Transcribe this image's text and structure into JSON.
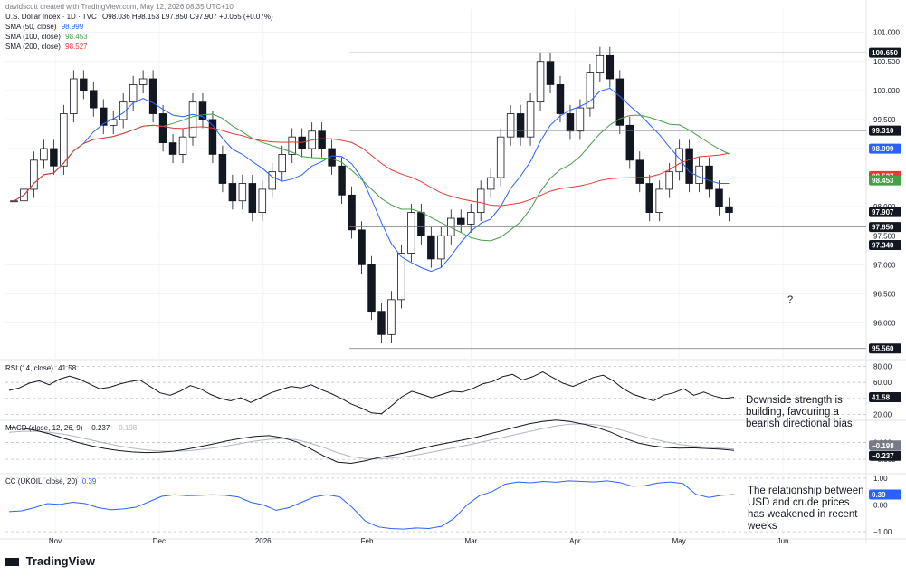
{
  "header": {
    "credit": "davidscutt created with TradingView.com, May 12, 2026 08:35 UTC+10",
    "symbol_line": "U.S. Dollar Index · 1D · TVC",
    "ohlc": "O98.036  H98.153  L97.850  C97.907  +0.065 (+0.07%)"
  },
  "indicators": [
    {
      "label": "SMA (50, close)",
      "value": "98.999",
      "color": "#2962ff"
    },
    {
      "label": "SMA (100, close)",
      "value": "98.453",
      "color": "#43a047"
    },
    {
      "label": "SMA (200, close)",
      "value": "98.527",
      "color": "#e53935"
    }
  ],
  "chart_data": {
    "type": "candlestick",
    "x_labels": [
      "Nov",
      "Dec",
      "2026",
      "Feb",
      "Mar",
      "Apr",
      "May",
      "Jun"
    ],
    "price_axis": {
      "ticks": [
        "101.000",
        "100.500",
        "100.000",
        "99.500",
        "99.000",
        "98.500",
        "98.000",
        "97.500",
        "97.000",
        "96.500",
        "96.000"
      ],
      "ylim": [
        95.4,
        101.4
      ]
    },
    "price_badges": [
      {
        "label": "100.650",
        "value": 100.65,
        "style": "level"
      },
      {
        "label": "99.310",
        "value": 99.31,
        "style": "level"
      },
      {
        "label": "98.999",
        "value": 98.999,
        "style": "sma50"
      },
      {
        "label": "98.527",
        "value": 98.527,
        "style": "sma200"
      },
      {
        "label": "98.453",
        "value": 98.453,
        "style": "sma100"
      },
      {
        "label": "97.907",
        "value": 97.907,
        "style": "last"
      },
      {
        "label": "97.650",
        "value": 97.65,
        "style": "level"
      },
      {
        "label": "97.340",
        "value": 97.34,
        "style": "level"
      },
      {
        "label": "95.560",
        "value": 95.56,
        "style": "level"
      }
    ],
    "close_path": [
      98.1,
      98.3,
      98.8,
      99.0,
      98.7,
      99.6,
      100.2,
      100.0,
      99.7,
      99.4,
      99.5,
      99.8,
      100.1,
      100.2,
      99.6,
      99.1,
      98.9,
      99.2,
      99.8,
      99.5,
      98.9,
      98.4,
      98.1,
      98.4,
      97.9,
      98.3,
      98.6,
      98.9,
      99.2,
      99.0,
      99.3,
      99.0,
      98.7,
      98.2,
      97.6,
      97.0,
      96.2,
      95.8,
      96.4,
      97.2,
      97.9,
      97.5,
      97.1,
      97.5,
      97.8,
      97.7,
      97.9,
      98.3,
      98.5,
      99.2,
      99.6,
      99.2,
      99.8,
      100.5,
      100.1,
      99.6,
      99.3,
      99.7,
      100.3,
      100.6,
      100.2,
      99.4,
      98.8,
      98.4,
      97.9,
      98.3,
      98.6,
      99.0,
      98.4,
      98.7,
      98.3,
      98.0,
      97.9
    ],
    "annotation": "?",
    "panels": [
      {
        "name": "RSI",
        "label": "RSI (14, close)",
        "value": "41.58",
        "ticks": [
          "80.00",
          "60.00",
          "40.00",
          "20.00"
        ],
        "ylim": [
          15,
          85
        ],
        "values": [
          50,
          53,
          59,
          62,
          57,
          64,
          68,
          64,
          58,
          52,
          54,
          58,
          61,
          63,
          55,
          47,
          44,
          49,
          56,
          52,
          45,
          40,
          37,
          41,
          35,
          41,
          47,
          51,
          55,
          53,
          57,
          51,
          46,
          40,
          33,
          28,
          22,
          21,
          31,
          42,
          49,
          45,
          41,
          45,
          49,
          48,
          52,
          58,
          61,
          67,
          70,
          63,
          67,
          73,
          66,
          59,
          55,
          60,
          66,
          69,
          62,
          52,
          45,
          41,
          37,
          44,
          47,
          52,
          44,
          48,
          43,
          40,
          41.58
        ],
        "badge": "41.58"
      },
      {
        "name": "MACD",
        "label": "MACD (close, 12, 26, 9)",
        "value": "−0.237",
        "signal_value": "−0.198",
        "ticks": [
          "0.000",
          "−0.500"
        ],
        "ylim": [
          -0.9,
          0.6
        ],
        "macd": [
          0.45,
          0.42,
          0.35,
          0.25,
          0.12,
          0.0,
          -0.1,
          -0.18,
          -0.24,
          -0.28,
          -0.3,
          -0.29,
          -0.26,
          -0.2,
          -0.12,
          -0.04,
          0.05,
          0.12,
          0.18,
          0.2,
          0.14,
          0.02,
          -0.18,
          -0.4,
          -0.58,
          -0.62,
          -0.55,
          -0.45,
          -0.38,
          -0.3,
          -0.2,
          -0.1,
          -0.02,
          0.06,
          0.14,
          0.24,
          0.34,
          0.45,
          0.55,
          0.62,
          0.66,
          0.62,
          0.54,
          0.44,
          0.3,
          0.12,
          -0.02,
          -0.1,
          -0.15,
          -0.17,
          -0.16,
          -0.18,
          -0.2,
          -0.237
        ],
        "signal": [
          0.3,
          0.33,
          0.33,
          0.3,
          0.24,
          0.16,
          0.07,
          -0.02,
          -0.1,
          -0.17,
          -0.22,
          -0.25,
          -0.26,
          -0.25,
          -0.21,
          -0.16,
          -0.1,
          -0.03,
          0.04,
          0.09,
          0.11,
          0.08,
          -0.02,
          -0.15,
          -0.3,
          -0.42,
          -0.48,
          -0.49,
          -0.46,
          -0.42,
          -0.36,
          -0.28,
          -0.2,
          -0.12,
          -0.04,
          0.05,
          0.14,
          0.23,
          0.32,
          0.41,
          0.49,
          0.54,
          0.55,
          0.52,
          0.45,
          0.34,
          0.22,
          0.11,
          0.02,
          -0.06,
          -0.11,
          -0.14,
          -0.17,
          -0.198
        ],
        "badges": [
          "−0.198",
          "−0.237"
        ]
      },
      {
        "name": "CC",
        "label": "CC (UKOIL, close, 20)",
        "value": "0.39",
        "ticks": [
          "1.00",
          "0.00",
          "−1.00"
        ],
        "ylim": [
          -1.1,
          1.1
        ],
        "values": [
          -0.25,
          -0.22,
          -0.1,
          0.05,
          0.02,
          0.1,
          0.05,
          -0.1,
          -0.18,
          -0.15,
          -0.08,
          0.12,
          0.32,
          0.38,
          0.35,
          0.36,
          0.38,
          0.36,
          0.3,
          0.1,
          0.0,
          -0.2,
          -0.1,
          0.1,
          0.3,
          0.38,
          0.3,
          -0.1,
          -0.6,
          -0.82,
          -0.88,
          -0.9,
          -0.86,
          -0.88,
          -0.8,
          -0.5,
          0.0,
          0.35,
          0.5,
          0.78,
          0.86,
          0.83,
          0.88,
          0.85,
          0.9,
          0.88,
          0.86,
          0.9,
          0.84,
          0.7,
          0.72,
          0.82,
          0.86,
          0.8,
          0.4,
          0.28,
          0.36,
          0.39
        ],
        "badge": "0.39"
      }
    ]
  },
  "notes": [
    "Downside strength is building, favouring a bearish directional bias",
    "The relationship between USD and crude prices has weakened in recent weeks"
  ],
  "brand": "TradingView",
  "colors": {
    "up": "#131722",
    "down": "#131722",
    "sma50": "#2962ff",
    "sma100": "#43a047",
    "sma200": "#e53935",
    "osc": "#131722",
    "signal": "#b2b5be",
    "cc": "#2962ff",
    "badge_bg": "#131722",
    "badge_fg": "#ffffff"
  }
}
